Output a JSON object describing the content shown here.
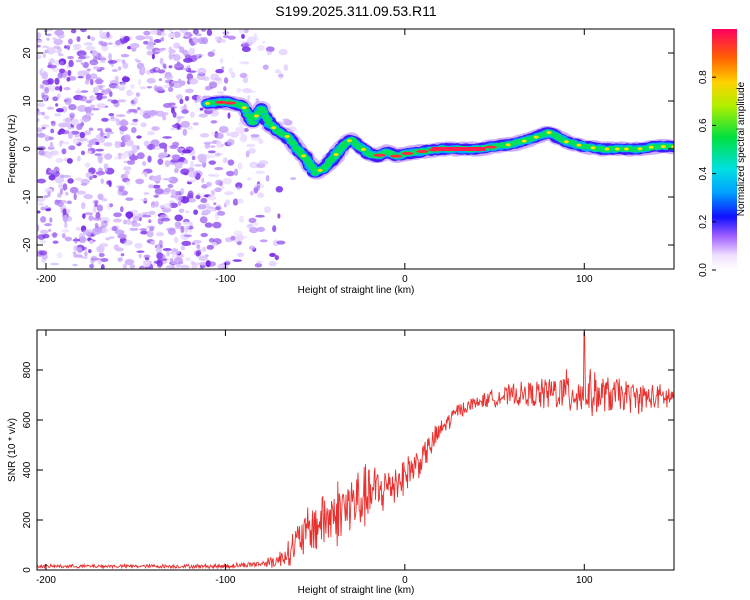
{
  "title": "S199.2025.311.09.53.R11",
  "chart_data": [
    {
      "type": "heatmap",
      "title": "S199.2025.311.09.53.R11",
      "xlabel": "Height of straight line (km)",
      "ylabel": "Frequency (Hz)",
      "xlim": [
        -205,
        150
      ],
      "ylim": [
        -25,
        25
      ],
      "x_ticks": [
        -200,
        -100,
        0,
        100
      ],
      "y_ticks": [
        -20,
        -10,
        0,
        10,
        20
      ],
      "colorbar": {
        "label": "Normalized spectral amplitude",
        "range": [
          0.0,
          1.0
        ],
        "ticks": [
          0.0,
          0.2,
          0.4,
          0.6,
          0.8
        ]
      },
      "ridge": {
        "x": [
          -110,
          -100,
          -90,
          -85,
          -80,
          -75,
          -70,
          -65,
          -60,
          -55,
          -50,
          -45,
          -40,
          -35,
          -30,
          -25,
          -20,
          -15,
          -10,
          -5,
          0,
          10,
          20,
          30,
          40,
          50,
          60,
          70,
          80,
          90,
          100,
          110,
          120,
          130,
          140,
          150
        ],
        "freq": [
          9.5,
          9.8,
          9,
          5.5,
          8.5,
          5,
          3.5,
          2.5,
          0,
          -2,
          -5,
          -4,
          -2,
          0.5,
          2,
          0.5,
          -1,
          -1.5,
          -0.5,
          -1.5,
          -1,
          -0.5,
          0,
          0,
          0,
          0.5,
          1,
          2,
          3.5,
          1.5,
          0.5,
          0,
          0,
          0,
          0.5,
          0.5
        ]
      },
      "noise_region_x": [
        -205,
        -75
      ]
    },
    {
      "type": "line",
      "xlabel": "Height of straight line (km)",
      "ylabel": "SNR (10 * v/v)",
      "xlim": [
        -205,
        150
      ],
      "ylim": [
        0,
        960
      ],
      "x_ticks": [
        -200,
        -100,
        0,
        100
      ],
      "y_ticks": [
        0,
        200,
        400,
        600,
        800
      ],
      "series": [
        {
          "name": "SNR",
          "color": "#e8312f",
          "envelope_x": [
            -205,
            -150,
            -100,
            -80,
            -70,
            -60,
            -50,
            -40,
            -30,
            -20,
            -10,
            0,
            10,
            20,
            30,
            40,
            50,
            60,
            70,
            80,
            90,
            100,
            110,
            120,
            130,
            140,
            150
          ],
          "envelope_mean": [
            15,
            15,
            15,
            25,
            40,
            110,
            180,
            220,
            260,
            300,
            330,
            380,
            450,
            560,
            640,
            670,
            690,
            700,
            700,
            710,
            710,
            710,
            700,
            700,
            690,
            690,
            690
          ],
          "envelope_spread": [
            8,
            8,
            10,
            15,
            40,
            90,
            130,
            150,
            160,
            140,
            110,
            90,
            70,
            50,
            35,
            30,
            40,
            50,
            60,
            80,
            100,
            110,
            90,
            80,
            70,
            60,
            60
          ],
          "peak": {
            "x": 100,
            "y": 950
          }
        }
      ]
    }
  ]
}
